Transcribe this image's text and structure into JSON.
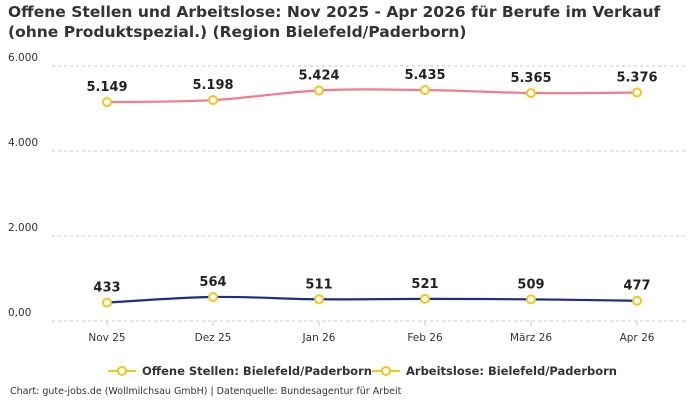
{
  "chart_data": {
    "type": "line",
    "title": "Offene Stellen und Arbeitslose: Nov 2025 - Apr 2026 für Berufe im Verkauf (ohne Produktspezial.) (Region Bielefeld/Paderborn)",
    "categories": [
      "Nov 25",
      "Dez 25",
      "Jan 26",
      "Feb 26",
      "März 26",
      "Apr 26"
    ],
    "y_ticks": [
      "0,00",
      "2.000",
      "4.000",
      "6.000"
    ],
    "ylim": [
      0,
      6000
    ],
    "grid": "horizontal-dashed",
    "legend_position": "bottom",
    "series": [
      {
        "name": "Offene Stellen: Bielefeld/Paderborn",
        "values": [
          433,
          564,
          511,
          521,
          509,
          477
        ],
        "labels": [
          "433",
          "564",
          "511",
          "521",
          "509",
          "477"
        ],
        "color": "#1f2d86",
        "marker_color": "#f5c518"
      },
      {
        "name": "Arbeitslose: Bielefeld/Paderborn",
        "values": [
          5149,
          5198,
          5424,
          5435,
          5365,
          5376
        ],
        "labels": [
          "5.149",
          "5.198",
          "5.424",
          "5.435",
          "5.365",
          "5.376"
        ],
        "color": "#f07c8c",
        "marker_color": "#f5c518"
      }
    ]
  },
  "source": "Chart: gute-jobs.de (Wollmilchsau GmbH) | Datenquelle: Bundesagentur für Arbeit"
}
